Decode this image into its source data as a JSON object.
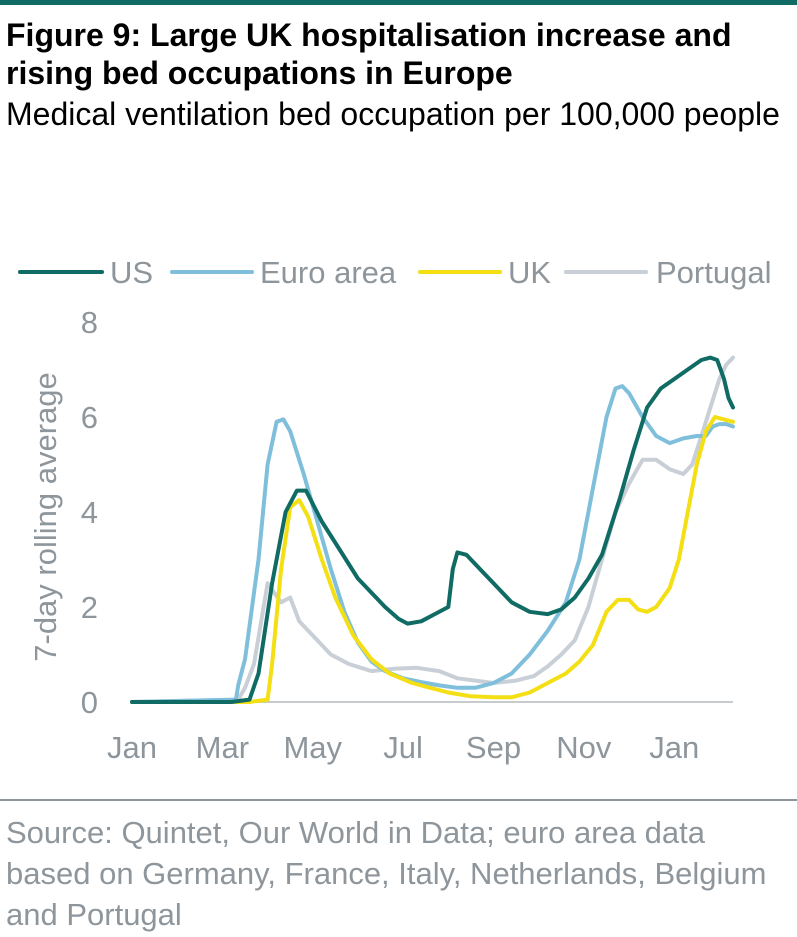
{
  "figure": {
    "title": "Figure 9: Large UK hospitalisation increase and rising bed occupations in Europe",
    "subtitle": "Medical ventilation bed occupation per 100,000 people",
    "source": "Source: Quintet, Our World in Data; euro area data based on Germany, France, Italy, Netherlands, Belgium and Portugal"
  },
  "chart_data": {
    "type": "line",
    "ylabel": "7-day rolling average",
    "xlabel": "",
    "ylim": [
      0,
      8
    ],
    "yticks": [
      0,
      2,
      4,
      6,
      8
    ],
    "x_range": [
      0,
      13.3
    ],
    "xticks": [
      {
        "label": "Jan",
        "pos": 0
      },
      {
        "label": "Mar",
        "pos": 2
      },
      {
        "label": "May",
        "pos": 4
      },
      {
        "label": "Jul",
        "pos": 6
      },
      {
        "label": "Sep",
        "pos": 8
      },
      {
        "label": "Nov",
        "pos": 10
      },
      {
        "label": "Jan",
        "pos": 12
      }
    ],
    "grid": false,
    "legend_position": "top",
    "series": [
      {
        "name": "US",
        "color": "#0f6b63",
        "points": [
          [
            0,
            0
          ],
          [
            2.2,
            0
          ],
          [
            2.6,
            0.05
          ],
          [
            2.8,
            0.6
          ],
          [
            3.1,
            2.5
          ],
          [
            3.4,
            4.0
          ],
          [
            3.65,
            4.45
          ],
          [
            3.85,
            4.45
          ],
          [
            4.2,
            3.8
          ],
          [
            4.6,
            3.2
          ],
          [
            5.0,
            2.6
          ],
          [
            5.3,
            2.3
          ],
          [
            5.6,
            2.0
          ],
          [
            5.9,
            1.75
          ],
          [
            6.1,
            1.65
          ],
          [
            6.4,
            1.7
          ],
          [
            6.7,
            1.85
          ],
          [
            7.0,
            2.0
          ],
          [
            7.1,
            2.8
          ],
          [
            7.2,
            3.15
          ],
          [
            7.4,
            3.1
          ],
          [
            7.7,
            2.8
          ],
          [
            8.0,
            2.5
          ],
          [
            8.4,
            2.1
          ],
          [
            8.8,
            1.9
          ],
          [
            9.2,
            1.85
          ],
          [
            9.5,
            1.95
          ],
          [
            9.8,
            2.2
          ],
          [
            10.1,
            2.6
          ],
          [
            10.4,
            3.1
          ],
          [
            10.8,
            4.3
          ],
          [
            11.1,
            5.3
          ],
          [
            11.4,
            6.2
          ],
          [
            11.7,
            6.6
          ],
          [
            12.0,
            6.8
          ],
          [
            12.3,
            7.0
          ],
          [
            12.6,
            7.2
          ],
          [
            12.8,
            7.25
          ],
          [
            12.95,
            7.2
          ],
          [
            13.1,
            6.8
          ],
          [
            13.2,
            6.4
          ],
          [
            13.3,
            6.2
          ]
        ]
      },
      {
        "name": "Euro area",
        "color": "#7fbfdc",
        "points": [
          [
            0,
            0
          ],
          [
            2.3,
            0.05
          ],
          [
            2.35,
            0.35
          ],
          [
            2.5,
            0.9
          ],
          [
            2.8,
            3.0
          ],
          [
            3.0,
            5.0
          ],
          [
            3.2,
            5.9
          ],
          [
            3.35,
            5.95
          ],
          [
            3.5,
            5.7
          ],
          [
            3.8,
            4.8
          ],
          [
            4.1,
            3.8
          ],
          [
            4.4,
            2.8
          ],
          [
            4.7,
            1.9
          ],
          [
            5.0,
            1.25
          ],
          [
            5.3,
            0.85
          ],
          [
            5.6,
            0.65
          ],
          [
            6.0,
            0.5
          ],
          [
            6.4,
            0.42
          ],
          [
            6.8,
            0.35
          ],
          [
            7.2,
            0.3
          ],
          [
            7.6,
            0.3
          ],
          [
            8.0,
            0.4
          ],
          [
            8.4,
            0.6
          ],
          [
            8.8,
            1.0
          ],
          [
            9.2,
            1.5
          ],
          [
            9.6,
            2.1
          ],
          [
            9.9,
            3.0
          ],
          [
            10.2,
            4.5
          ],
          [
            10.5,
            6.0
          ],
          [
            10.7,
            6.6
          ],
          [
            10.85,
            6.65
          ],
          [
            11.0,
            6.5
          ],
          [
            11.3,
            6.0
          ],
          [
            11.6,
            5.6
          ],
          [
            11.9,
            5.45
          ],
          [
            12.2,
            5.55
          ],
          [
            12.5,
            5.6
          ],
          [
            12.7,
            5.6
          ],
          [
            12.85,
            5.8
          ],
          [
            13.0,
            5.85
          ],
          [
            13.15,
            5.85
          ],
          [
            13.3,
            5.8
          ]
        ]
      },
      {
        "name": "UK",
        "color": "#f4df14",
        "points": [
          [
            0,
            0
          ],
          [
            2.6,
            0
          ],
          [
            3.0,
            0.05
          ],
          [
            3.1,
            0.8
          ],
          [
            3.3,
            2.8
          ],
          [
            3.5,
            4.1
          ],
          [
            3.7,
            4.25
          ],
          [
            3.9,
            3.9
          ],
          [
            4.2,
            3.0
          ],
          [
            4.5,
            2.2
          ],
          [
            4.9,
            1.4
          ],
          [
            5.3,
            0.9
          ],
          [
            5.7,
            0.6
          ],
          [
            6.2,
            0.4
          ],
          [
            6.6,
            0.3
          ],
          [
            7.0,
            0.2
          ],
          [
            7.5,
            0.12
          ],
          [
            8.0,
            0.1
          ],
          [
            8.4,
            0.1
          ],
          [
            8.8,
            0.2
          ],
          [
            9.2,
            0.4
          ],
          [
            9.6,
            0.6
          ],
          [
            9.9,
            0.85
          ],
          [
            10.2,
            1.2
          ],
          [
            10.5,
            1.9
          ],
          [
            10.75,
            2.15
          ],
          [
            11.0,
            2.15
          ],
          [
            11.2,
            1.95
          ],
          [
            11.4,
            1.9
          ],
          [
            11.6,
            2.0
          ],
          [
            11.9,
            2.4
          ],
          [
            12.1,
            3.0
          ],
          [
            12.3,
            4.0
          ],
          [
            12.5,
            5.0
          ],
          [
            12.7,
            5.7
          ],
          [
            12.9,
            6.0
          ],
          [
            13.1,
            5.95
          ],
          [
            13.3,
            5.9
          ]
        ]
      },
      {
        "name": "Portugal",
        "color": "#c9cfd6",
        "points": [
          [
            0,
            0
          ],
          [
            2.35,
            0.05
          ],
          [
            2.5,
            0.3
          ],
          [
            2.7,
            0.8
          ],
          [
            3.0,
            2.5
          ],
          [
            3.15,
            2.3
          ],
          [
            3.3,
            2.1
          ],
          [
            3.5,
            2.2
          ],
          [
            3.7,
            1.7
          ],
          [
            4.0,
            1.4
          ],
          [
            4.4,
            1.0
          ],
          [
            4.8,
            0.8
          ],
          [
            5.3,
            0.65
          ],
          [
            5.8,
            0.7
          ],
          [
            6.3,
            0.72
          ],
          [
            6.8,
            0.65
          ],
          [
            7.2,
            0.5
          ],
          [
            7.6,
            0.45
          ],
          [
            8.0,
            0.4
          ],
          [
            8.5,
            0.45
          ],
          [
            8.9,
            0.55
          ],
          [
            9.2,
            0.75
          ],
          [
            9.5,
            1.0
          ],
          [
            9.8,
            1.3
          ],
          [
            10.1,
            2.0
          ],
          [
            10.4,
            3.0
          ],
          [
            10.7,
            4.0
          ],
          [
            11.0,
            4.6
          ],
          [
            11.3,
            5.1
          ],
          [
            11.6,
            5.1
          ],
          [
            11.9,
            4.9
          ],
          [
            12.2,
            4.8
          ],
          [
            12.4,
            5.0
          ],
          [
            12.6,
            5.6
          ],
          [
            12.8,
            6.2
          ],
          [
            13.0,
            6.8
          ],
          [
            13.15,
            7.1
          ],
          [
            13.3,
            7.25
          ]
        ]
      }
    ]
  }
}
